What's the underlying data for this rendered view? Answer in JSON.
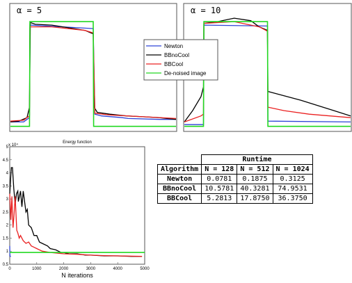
{
  "chart_data": [
    {
      "type": "line",
      "title": "α = 5",
      "series": [
        {
          "name": "Newton",
          "color": "#2d43d8",
          "x": [
            0,
            0.16,
            0.2,
            0.23,
            0.235,
            1.0,
            1.02,
            1.1,
            1.35,
            1.42,
            1.8,
            2.0
          ],
          "y": [
            0.05,
            0.05,
            0.08,
            0.1,
            1.16,
            1.12,
            0.14,
            0.12,
            0.1,
            0.09,
            0.08,
            0.08
          ]
        },
        {
          "name": "BBnoCool",
          "color": "#000000",
          "x": [
            0,
            0.1,
            0.2,
            0.23,
            0.24,
            0.3,
            0.5,
            0.7,
            0.9,
            1.0,
            1.01,
            1.05,
            1.2,
            1.4,
            1.6,
            1.8,
            2.0
          ],
          "y": [
            0.05,
            0.06,
            0.1,
            0.22,
            1.19,
            1.17,
            1.16,
            1.13,
            1.1,
            1.06,
            0.22,
            0.16,
            0.14,
            0.12,
            0.11,
            0.1,
            0.08
          ]
        },
        {
          "name": "BBCool",
          "color": "#ea2020",
          "x": [
            0,
            0.16,
            0.2,
            0.23,
            0.235,
            0.5,
            0.9,
            1.0,
            1.02,
            1.2,
            1.6,
            2.0
          ],
          "y": [
            0.06,
            0.07,
            0.1,
            0.12,
            1.14,
            1.14,
            1.1,
            1.07,
            0.15,
            0.13,
            0.11,
            0.09
          ]
        },
        {
          "name": "De-noised image",
          "color": "#22d822",
          "x": [
            0,
            0.23,
            0.235,
            1.0,
            1.005,
            2.0
          ],
          "y": [
            0.0,
            0.0,
            1.2,
            1.2,
            0.0,
            0.0
          ]
        }
      ],
      "ylim": [
        -0.05,
        1.4
      ]
    },
    {
      "type": "line",
      "title": "α = 10",
      "series": [
        {
          "name": "Newton",
          "color": "#2d43d8",
          "x": [
            0,
            0.23,
            0.235,
            1.0,
            1.005,
            2.0
          ],
          "y": [
            0.02,
            0.02,
            1.16,
            1.15,
            0.06,
            0.05
          ]
        },
        {
          "name": "BBnoCool",
          "color": "#000000",
          "x": [
            0,
            0.1,
            0.2,
            0.23,
            0.235,
            0.4,
            0.6,
            0.8,
            0.9,
            1.0,
            1.005,
            1.2,
            1.4,
            1.6,
            1.8,
            2.0
          ],
          "y": [
            0.05,
            0.18,
            0.34,
            0.45,
            1.18,
            1.2,
            1.24,
            1.21,
            1.14,
            1.1,
            0.4,
            0.35,
            0.3,
            0.24,
            0.18,
            0.12
          ]
        },
        {
          "name": "BBCool",
          "color": "#ea2020",
          "x": [
            0,
            0.2,
            0.23,
            0.235,
            0.6,
            0.9,
            1.0,
            1.005,
            1.2,
            1.5,
            2.0
          ],
          "y": [
            0.05,
            0.12,
            0.14,
            1.18,
            1.2,
            1.14,
            1.09,
            0.22,
            0.18,
            0.14,
            0.1
          ]
        },
        {
          "name": "De-noised image",
          "color": "#22d822",
          "x": [
            0,
            0.23,
            0.235,
            1.0,
            1.005,
            2.0
          ],
          "y": [
            0.0,
            0.0,
            1.2,
            1.2,
            0.0,
            0.0
          ]
        }
      ],
      "ylim": [
        -0.05,
        1.4
      ]
    },
    {
      "type": "line",
      "title": "Energy function",
      "xlabel": "N iterations",
      "ylabel": "",
      "y_exponent_label": "x 10⁴",
      "xlim": [
        0,
        5000
      ],
      "ylim": [
        0.5,
        5
      ],
      "x_ticks": [
        0,
        1000,
        2000,
        3000,
        4000,
        5000
      ],
      "y_ticks": [
        0.5,
        1,
        1.5,
        2,
        2.5,
        3,
        3.5,
        4,
        4.5,
        5
      ],
      "series": [
        {
          "name": "Newton",
          "color": "#2d43d8",
          "x": [
            0,
            5,
            10,
            15,
            20,
            40
          ],
          "y": [
            1.2,
            0.9,
            0.82,
            0.8,
            0.8,
            0.8
          ]
        },
        {
          "name": "BBnoCool",
          "color": "#000000",
          "x": [
            0,
            60,
            100,
            150,
            200,
            250,
            300,
            320,
            400,
            450,
            500,
            600,
            650,
            700,
            800,
            900,
            1000,
            1100,
            1200,
            1400,
            1500,
            1700,
            1900,
            2000,
            2200,
            2500,
            2800,
            3000,
            3500,
            4000,
            4500,
            4900
          ],
          "y": [
            3.2,
            4.2,
            4.2,
            3.4,
            2.8,
            3.2,
            3.3,
            2.9,
            3.3,
            2.7,
            3.3,
            2.5,
            2.6,
            2.0,
            1.9,
            1.6,
            1.6,
            1.35,
            1.3,
            1.2,
            1.1,
            1.05,
            0.95,
            0.95,
            0.9,
            0.9,
            0.85,
            0.85,
            0.82,
            0.82,
            0.8,
            0.8
          ]
        },
        {
          "name": "BBCool",
          "color": "#ea2020",
          "x": [
            0,
            40,
            80,
            120,
            160,
            200,
            260,
            300,
            350,
            400,
            500,
            600,
            700,
            800,
            900,
            1000,
            1200,
            1500,
            2000,
            2500,
            3000,
            3500,
            4000,
            4900
          ],
          "y": [
            3.2,
            2.2,
            3.1,
            1.9,
            2.4,
            3.1,
            1.8,
            1.7,
            1.5,
            1.6,
            1.4,
            1.3,
            1.35,
            1.2,
            1.15,
            1.1,
            1.0,
            0.95,
            0.9,
            0.88,
            0.85,
            0.83,
            0.82,
            0.8
          ]
        },
        {
          "name": "De-noised image",
          "color": "#22d822",
          "x": [
            0,
            5000
          ],
          "y": [
            0.95,
            0.95
          ]
        }
      ]
    },
    {
      "type": "table",
      "title": "Runtime",
      "header": [
        "Algorithm",
        "N = 128",
        "N = 512",
        "N = 1024"
      ],
      "rows": [
        [
          "Newton",
          "0.0781",
          "0.1875",
          "0.3125"
        ],
        [
          "BBnoCool",
          "10.5781",
          "40.3281",
          "74.9531"
        ],
        [
          "BBCool",
          "5.2813",
          "17.8750",
          "36.3750"
        ]
      ]
    }
  ],
  "legend": {
    "placement": "top-center",
    "entries": [
      "Newton",
      "BBnoCool",
      "BBCool",
      "De-noised image"
    ]
  }
}
